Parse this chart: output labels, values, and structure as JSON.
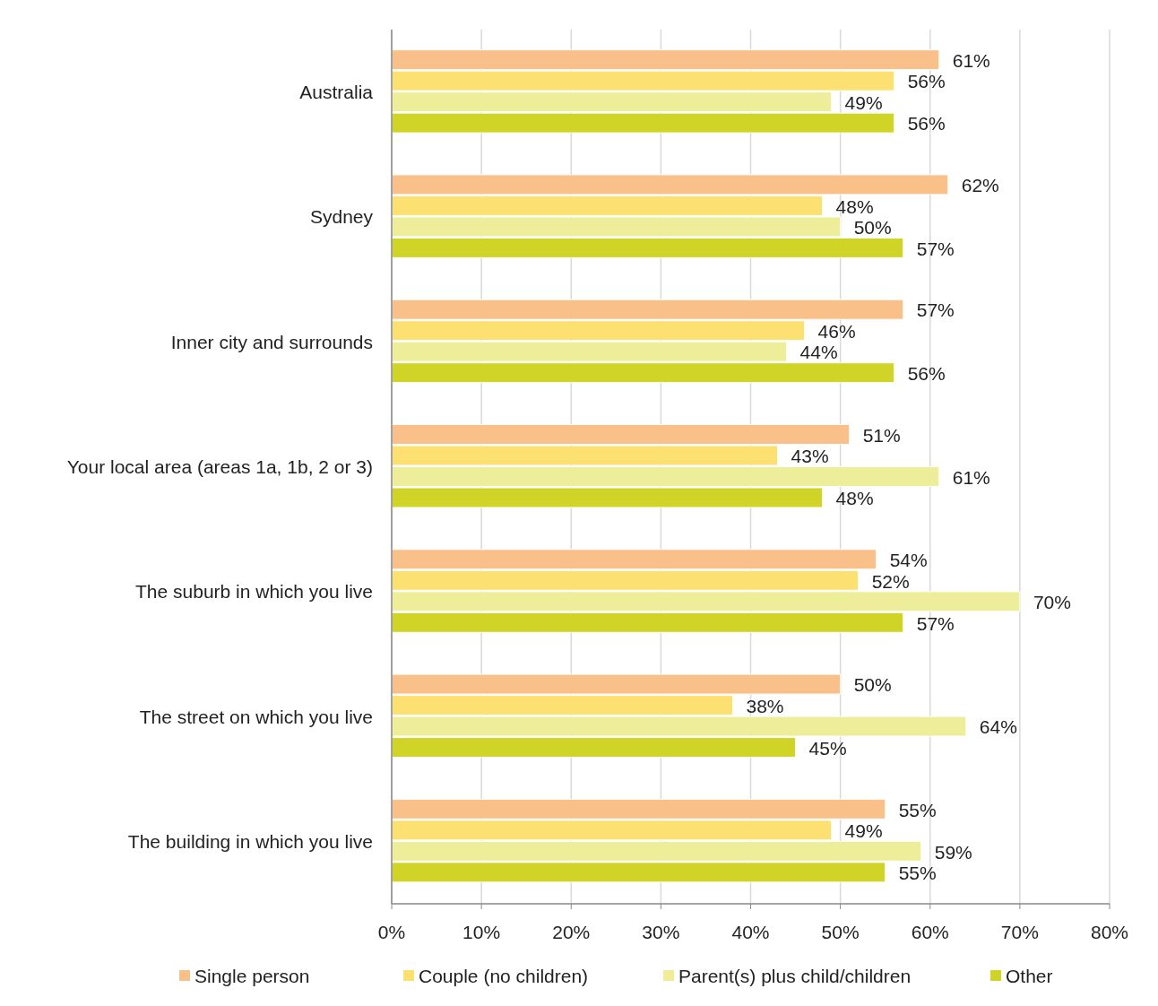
{
  "chart_data": {
    "type": "bar",
    "orientation": "horizontal",
    "categories": [
      "Australia",
      "Sydney",
      "Inner city and surrounds",
      "Your local area (areas 1a, 1b, 2 or 3)",
      "The suburb in which you live",
      "The street on which you live",
      "The building in which you live"
    ],
    "series": [
      {
        "name": "Single person",
        "color": "#f9c08a",
        "values": [
          61,
          62,
          57,
          51,
          54,
          50,
          55
        ],
        "value_labels": [
          "61%",
          "62%",
          "57%",
          "51%",
          "54%",
          "50%",
          "55%"
        ]
      },
      {
        "name": "Couple (no children)",
        "color": "#fde072",
        "values": [
          56,
          48,
          46,
          43,
          52,
          38,
          49
        ],
        "value_labels": [
          "56%",
          "48%",
          "46%",
          "43%",
          "52%",
          "38%",
          "49%"
        ]
      },
      {
        "name": "Parent(s) plus child/children",
        "color": "#eeee9a",
        "values": [
          49,
          50,
          44,
          61,
          70,
          64,
          59
        ],
        "value_labels": [
          "49%",
          "50%",
          "44%",
          "61%",
          "70%",
          "64%",
          "59%"
        ]
      },
      {
        "name": "Other",
        "color": "#cfd427",
        "values": [
          56,
          57,
          56,
          48,
          57,
          45,
          55
        ],
        "value_labels": [
          "56%",
          "57%",
          "56%",
          "48%",
          "57%",
          "45%",
          "55%"
        ]
      }
    ],
    "xlim": [
      0,
      80
    ],
    "xticks": [
      {
        "value": 0,
        "label": "0%"
      },
      {
        "value": 10,
        "label": "10%"
      },
      {
        "value": 20,
        "label": "20%"
      },
      {
        "value": 30,
        "label": "30%"
      },
      {
        "value": 40,
        "label": "40%"
      },
      {
        "value": 50,
        "label": "50%"
      },
      {
        "value": 60,
        "label": "60%"
      },
      {
        "value": 70,
        "label": "70%"
      },
      {
        "value": 80,
        "label": "80%"
      }
    ],
    "grid": "x",
    "legend": "bottom",
    "marker": "square"
  }
}
